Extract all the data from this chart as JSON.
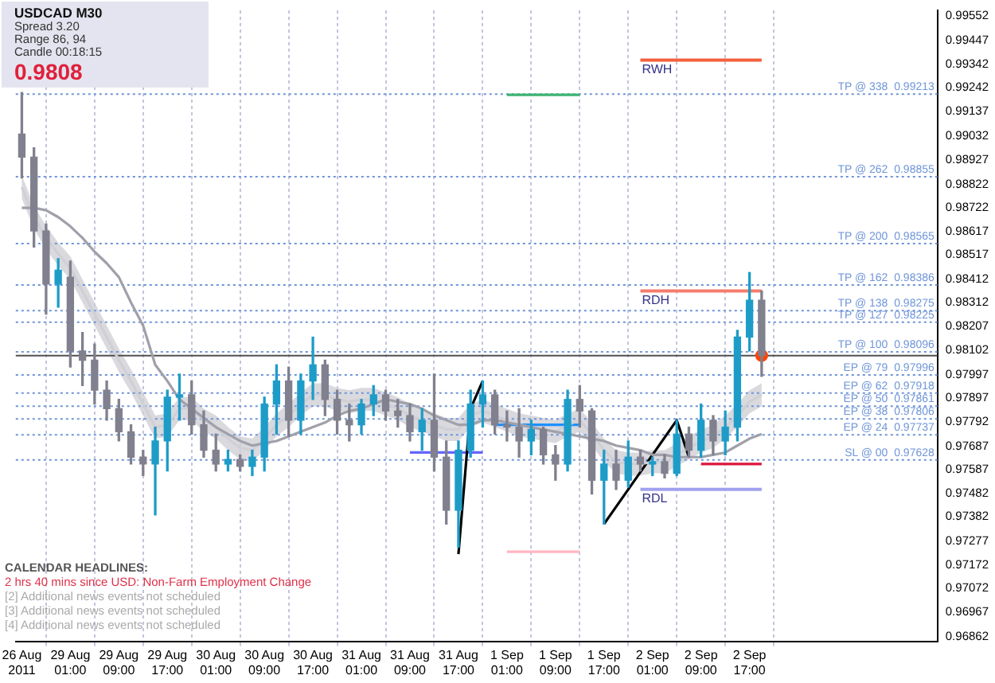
{
  "chart_data": {
    "type": "candlestick",
    "title": "USDCAD  M30",
    "categories": [
      "26 Aug 2011",
      null,
      null,
      null,
      "29 Aug 01:00",
      null,
      null,
      null,
      "29 Aug 09:00",
      null,
      null,
      null,
      "29 Aug 17:00",
      null,
      null,
      null,
      "30 Aug 01:00",
      null,
      null,
      null,
      "30 Aug 09:00",
      null,
      null,
      null,
      "30 Aug 17:00",
      null,
      null,
      null,
      "31 Aug 01:00",
      null,
      null,
      null,
      "31 Aug 09:00",
      null,
      null,
      null,
      "31 Aug 17:00",
      null,
      null,
      null,
      "1 Sep 01:00",
      null,
      null,
      null,
      "1 Sep 09:00",
      null,
      null,
      null,
      "1 Sep 17:00",
      null,
      null,
      null,
      "2 Sep 01:00",
      null,
      null,
      null,
      "2 Sep 09:00",
      null,
      null,
      null,
      "2 Sep 17:00",
      null
    ],
    "ohlc": [
      [
        0.9904,
        0.9922,
        0.9885,
        0.9894
      ],
      [
        0.9894,
        0.9898,
        0.9855,
        0.9862
      ],
      [
        0.9862,
        0.9865,
        0.9826,
        0.9839
      ],
      [
        0.9839,
        0.985,
        0.9829,
        0.9845
      ],
      [
        0.9842,
        0.9849,
        0.9803,
        0.981
      ],
      [
        0.981,
        0.9818,
        0.9795,
        0.9806
      ],
      [
        0.9806,
        0.9813,
        0.9787,
        0.9793
      ],
      [
        0.9793,
        0.9797,
        0.978,
        0.9785
      ],
      [
        0.9785,
        0.9789,
        0.9771,
        0.9775
      ],
      [
        0.9775,
        0.9778,
        0.9761,
        0.9764
      ],
      [
        0.9764,
        0.9767,
        0.9756,
        0.9761
      ],
      [
        0.9761,
        0.9777,
        0.9739,
        0.9771
      ],
      [
        0.9771,
        0.9793,
        0.9758,
        0.979
      ],
      [
        0.979,
        0.98,
        0.978,
        0.9791
      ],
      [
        0.9791,
        0.9797,
        0.9774,
        0.9778
      ],
      [
        0.9778,
        0.9784,
        0.9764,
        0.9767
      ],
      [
        0.9767,
        0.9774,
        0.9758,
        0.9761
      ],
      [
        0.9761,
        0.9767,
        0.9758,
        0.9763
      ],
      [
        0.9763,
        0.9765,
        0.9758,
        0.976
      ],
      [
        0.976,
        0.9767,
        0.9756,
        0.9764
      ],
      [
        0.9764,
        0.979,
        0.9758,
        0.9787
      ],
      [
        0.9787,
        0.9804,
        0.9774,
        0.9797
      ],
      [
        0.9797,
        0.9803,
        0.9773,
        0.978
      ],
      [
        0.978,
        0.98,
        0.9774,
        0.9797
      ],
      [
        0.9797,
        0.9816,
        0.9789,
        0.9804
      ],
      [
        0.9804,
        0.9806,
        0.9782,
        0.9789
      ],
      [
        0.9789,
        0.9793,
        0.9774,
        0.978
      ],
      [
        0.978,
        0.9787,
        0.9771,
        0.9778
      ],
      [
        0.9778,
        0.9789,
        0.9774,
        0.9787
      ],
      [
        0.9787,
        0.9795,
        0.9782,
        0.9791
      ],
      [
        0.9791,
        0.9793,
        0.978,
        0.9784
      ],
      [
        0.9784,
        0.9789,
        0.9777,
        0.9782
      ],
      [
        0.9782,
        0.9787,
        0.9771,
        0.9775
      ],
      [
        0.9775,
        0.9785,
        0.9767,
        0.978
      ],
      [
        0.978,
        0.98,
        0.9758,
        0.9764
      ],
      [
        0.9764,
        0.9771,
        0.9735,
        0.9741
      ],
      [
        0.9741,
        0.9771,
        0.9725,
        0.9767
      ],
      [
        0.9767,
        0.9793,
        0.9764,
        0.9787
      ],
      [
        0.9787,
        0.9797,
        0.9777,
        0.9791
      ],
      [
        0.9791,
        0.9793,
        0.9774,
        0.9778
      ],
      [
        0.9778,
        0.9784,
        0.9771,
        0.9777
      ],
      [
        0.9777,
        0.9785,
        0.9764,
        0.9771
      ],
      [
        0.9771,
        0.978,
        0.9765,
        0.9776
      ],
      [
        0.9776,
        0.9777,
        0.9761,
        0.9765
      ],
      [
        0.9765,
        0.9769,
        0.9754,
        0.9761
      ],
      [
        0.9761,
        0.9793,
        0.9758,
        0.9789
      ],
      [
        0.9789,
        0.9795,
        0.9777,
        0.9784
      ],
      [
        0.9784,
        0.9785,
        0.9748,
        0.9754
      ],
      [
        0.9754,
        0.9767,
        0.9735,
        0.9761
      ],
      [
        0.9761,
        0.9767,
        0.975,
        0.9754
      ],
      [
        0.9754,
        0.9771,
        0.9751,
        0.9764
      ],
      [
        0.9764,
        0.9767,
        0.9758,
        0.9761
      ],
      [
        0.9761,
        0.9764,
        0.9756,
        0.9762
      ],
      [
        0.9762,
        0.9765,
        0.9755,
        0.9757
      ],
      [
        0.9757,
        0.978,
        0.9756,
        0.9774
      ],
      [
        0.9774,
        0.9777,
        0.9764,
        0.9767
      ],
      [
        0.9767,
        0.9787,
        0.9764,
        0.978
      ],
      [
        0.978,
        0.9782,
        0.9765,
        0.9771
      ],
      [
        0.9771,
        0.9784,
        0.9765,
        0.9777
      ],
      [
        0.9777,
        0.9819,
        0.9771,
        0.9816
      ],
      [
        0.9816,
        0.9844,
        0.981,
        0.9832
      ],
      [
        0.9832,
        0.9836,
        0.9799,
        0.9808
      ]
    ],
    "series": [
      {
        "type": "line",
        "color": "#a0a0aa",
        "values": [
          0.9872,
          0.9872,
          0.9871,
          0.9868,
          0.9864,
          0.9859,
          0.9853,
          0.9848,
          0.9842,
          0.9831,
          0.9821,
          0.9804,
          0.9797,
          0.9789,
          0.9785,
          0.9781,
          0.9777,
          0.9774,
          0.9771,
          0.9769,
          0.977,
          0.9771,
          0.9773,
          0.9775,
          0.9777,
          0.9779,
          0.9782,
          0.9784,
          0.9785,
          0.9787,
          0.9789,
          0.9788,
          0.9787,
          0.9785,
          0.9782,
          0.978,
          0.9778,
          0.9778,
          0.978,
          0.978,
          0.9779,
          0.9778,
          0.9777,
          0.9776,
          0.9775,
          0.9774,
          0.9773,
          0.9772,
          0.9771,
          0.9769,
          0.9768,
          0.9767,
          0.9765,
          0.9765,
          0.9764,
          0.9764,
          0.9764,
          0.9765,
          0.9766,
          0.9769,
          0.9772,
          0.9774
        ]
      },
      {
        "type": "line",
        "color": "#cfcfd6",
        "values": [
          0.9881,
          0.9868,
          0.9859,
          0.9852,
          0.9846,
          0.9836,
          0.9826,
          0.9816,
          0.9806,
          0.9797,
          0.9787,
          0.9777,
          0.9778,
          0.9785,
          0.9785,
          0.978,
          0.9777,
          0.9772,
          0.9768,
          0.9767,
          0.9772,
          0.9778,
          0.9782,
          0.9787,
          0.9791,
          0.9791,
          0.9789,
          0.9788,
          0.9789,
          0.9789,
          0.9787,
          0.9785,
          0.9782,
          0.978,
          0.9778,
          0.9776,
          0.9776,
          0.9782,
          0.9784,
          0.9782,
          0.978,
          0.9778,
          0.9777,
          0.9776,
          0.9775,
          0.9778,
          0.978,
          0.9774,
          0.9767,
          0.9762,
          0.9761,
          0.9761,
          0.9762,
          0.9762,
          0.9765,
          0.9768,
          0.9771,
          0.9773,
          0.9777,
          0.9782,
          0.9788,
          0.9791
        ],
        "upper": [
          0.9886,
          0.9873,
          0.9864,
          0.9857,
          0.9851,
          0.9841,
          0.9831,
          0.9821,
          0.9811,
          0.9802,
          0.9792,
          0.9782,
          0.9783,
          0.979,
          0.979,
          0.9785,
          0.9782,
          0.9777,
          0.9773,
          0.9772,
          0.9777,
          0.9783,
          0.9787,
          0.9792,
          0.9796,
          0.9796,
          0.9794,
          0.9793,
          0.9794,
          0.9794,
          0.9792,
          0.979,
          0.9787,
          0.9785,
          0.9783,
          0.9781,
          0.9781,
          0.9787,
          0.9789,
          0.9787,
          0.9785,
          0.9783,
          0.9782,
          0.9781,
          0.978,
          0.9783,
          0.9785,
          0.9779,
          0.9772,
          0.9767,
          0.9766,
          0.9766,
          0.9767,
          0.9767,
          0.977,
          0.9773,
          0.9776,
          0.9778,
          0.9782,
          0.9787,
          0.9793,
          0.9796
        ],
        "lower": [
          0.9876,
          0.9863,
          0.9854,
          0.9847,
          0.9841,
          0.9831,
          0.9821,
          0.9811,
          0.9801,
          0.9792,
          0.9782,
          0.9772,
          0.9773,
          0.978,
          0.978,
          0.9775,
          0.9772,
          0.9767,
          0.9763,
          0.9762,
          0.9767,
          0.9773,
          0.9777,
          0.9782,
          0.9786,
          0.9786,
          0.9784,
          0.9783,
          0.9784,
          0.9784,
          0.9782,
          0.978,
          0.9777,
          0.9775,
          0.9773,
          0.9771,
          0.9771,
          0.9777,
          0.9779,
          0.9777,
          0.9775,
          0.9773,
          0.9772,
          0.9771,
          0.977,
          0.9773,
          0.9775,
          0.9769,
          0.9762,
          0.9757,
          0.9756,
          0.9756,
          0.9757,
          0.9757,
          0.976,
          0.9763,
          0.9766,
          0.9768,
          0.9772,
          0.9777,
          0.9783,
          0.9786
        ]
      },
      {
        "type": "line",
        "color": "#000000",
        "values": [
          null,
          null,
          null,
          null,
          null,
          null,
          null,
          null,
          null,
          null,
          null,
          null,
          null,
          null,
          null,
          null,
          null,
          null,
          null,
          null,
          null,
          null,
          null,
          null,
          null,
          null,
          null,
          null,
          null,
          null,
          null,
          null,
          null,
          null,
          null,
          null,
          0.9722,
          0.9785,
          0.9797,
          null,
          null,
          null,
          null,
          null,
          null,
          null,
          null,
          null,
          null,
          null,
          null,
          null,
          null,
          null,
          null,
          null,
          null,
          null,
          null,
          null,
          null,
          null
        ]
      },
      {
        "type": "line",
        "color": "#000000",
        "values": [
          null,
          null,
          null,
          null,
          null,
          null,
          null,
          null,
          null,
          null,
          null,
          null,
          null,
          null,
          null,
          null,
          null,
          null,
          null,
          null,
          null,
          null,
          null,
          null,
          null,
          null,
          null,
          null,
          null,
          null,
          null,
          null,
          null,
          null,
          null,
          null,
          null,
          null,
          null,
          null,
          null,
          null,
          null,
          null,
          null,
          null,
          null,
          null,
          0.9735,
          null,
          null,
          null,
          null,
          null,
          0.978,
          0.9764,
          null,
          null,
          null,
          null,
          null,
          null
        ]
      },
      {
        "type": "line",
        "color": "#3cb371",
        "values": [
          null,
          null,
          null,
          null,
          null,
          null,
          null,
          null,
          null,
          null,
          null,
          null,
          null,
          null,
          null,
          null,
          null,
          null,
          null,
          null,
          null,
          null,
          null,
          null,
          null,
          null,
          null,
          null,
          null,
          null,
          null,
          null,
          null,
          null,
          null,
          null,
          null,
          null,
          null,
          null,
          0.9921,
          0.9921,
          0.9921,
          0.9921,
          0.9921,
          0.9921,
          0.9921,
          null,
          null,
          null,
          null,
          null,
          null,
          null,
          null,
          null,
          null,
          null,
          null,
          null,
          null,
          null
        ]
      },
      {
        "type": "line",
        "color": "#ffb6c1",
        "values": [
          null,
          null,
          null,
          null,
          null,
          null,
          null,
          null,
          null,
          null,
          null,
          null,
          null,
          null,
          null,
          null,
          null,
          null,
          null,
          null,
          null,
          null,
          null,
          null,
          null,
          null,
          null,
          null,
          null,
          null,
          null,
          null,
          null,
          null,
          null,
          null,
          null,
          null,
          null,
          null,
          0.9723,
          0.9723,
          0.9723,
          0.9723,
          0.9723,
          0.9723,
          0.9723,
          null,
          null,
          null,
          null,
          null,
          null,
          null,
          null,
          null,
          null,
          null,
          null,
          null,
          null,
          null
        ]
      },
      {
        "type": "line",
        "color": "#6464ff",
        "values": [
          null,
          null,
          null,
          null,
          null,
          null,
          null,
          null,
          null,
          null,
          null,
          null,
          null,
          null,
          null,
          null,
          null,
          null,
          null,
          null,
          null,
          null,
          null,
          null,
          null,
          null,
          null,
          null,
          null,
          null,
          null,
          null,
          0.9766,
          0.9766,
          0.9766,
          0.9766,
          0.9766,
          0.9766,
          0.9766,
          null,
          null,
          null,
          null,
          null,
          null,
          null,
          null,
          null,
          null,
          null,
          null,
          null,
          null,
          null,
          null,
          null,
          null,
          null,
          null,
          null,
          null,
          null
        ]
      },
      {
        "type": "line",
        "color": "#1e90ff",
        "values": [
          null,
          null,
          null,
          null,
          null,
          null,
          null,
          null,
          null,
          null,
          null,
          null,
          null,
          null,
          null,
          null,
          null,
          null,
          null,
          null,
          null,
          null,
          null,
          null,
          null,
          null,
          null,
          null,
          null,
          null,
          null,
          null,
          null,
          null,
          null,
          null,
          null,
          null,
          null,
          0.9778,
          0.9778,
          0.9778,
          0.9778,
          0.9778,
          0.9778,
          0.9778,
          0.9778,
          null,
          null,
          null,
          null,
          null,
          null,
          null,
          null,
          null,
          null,
          null,
          null,
          null,
          null,
          null
        ]
      },
      {
        "type": "line",
        "color": "#dc143c",
        "values": [
          null,
          null,
          null,
          null,
          null,
          null,
          null,
          null,
          null,
          null,
          null,
          null,
          null,
          null,
          null,
          null,
          null,
          null,
          null,
          null,
          null,
          null,
          null,
          null,
          null,
          null,
          null,
          null,
          null,
          null,
          null,
          null,
          null,
          null,
          null,
          null,
          null,
          null,
          null,
          null,
          null,
          null,
          null,
          null,
          null,
          null,
          null,
          null,
          null,
          null,
          null,
          null,
          null,
          null,
          null,
          null,
          0.9761,
          0.9761,
          0.9761,
          0.9761,
          0.9761,
          0.9761
        ]
      },
      {
        "type": "line",
        "name": "RWH",
        "color": "#f4603c",
        "values": [
          null,
          null,
          null,
          null,
          null,
          null,
          null,
          null,
          null,
          null,
          null,
          null,
          null,
          null,
          null,
          null,
          null,
          null,
          null,
          null,
          null,
          null,
          null,
          null,
          null,
          null,
          null,
          null,
          null,
          null,
          null,
          null,
          null,
          null,
          null,
          null,
          null,
          null,
          null,
          null,
          null,
          null,
          null,
          null,
          null,
          null,
          null,
          null,
          null,
          null,
          null,
          0.9936,
          0.9936,
          0.9936,
          0.9936,
          0.9936,
          0.9936,
          0.9936,
          0.9936,
          0.9936,
          0.9936,
          0.9936
        ]
      },
      {
        "type": "line",
        "name": "RDH",
        "color": "#f47c6c",
        "values": [
          null,
          null,
          null,
          null,
          null,
          null,
          null,
          null,
          null,
          null,
          null,
          null,
          null,
          null,
          null,
          null,
          null,
          null,
          null,
          null,
          null,
          null,
          null,
          null,
          null,
          null,
          null,
          null,
          null,
          null,
          null,
          null,
          null,
          null,
          null,
          null,
          null,
          null,
          null,
          null,
          null,
          null,
          null,
          null,
          null,
          null,
          null,
          null,
          null,
          null,
          null,
          0.9836,
          0.9836,
          0.9836,
          0.9836,
          0.9836,
          0.9836,
          0.9836,
          0.9836,
          0.9836,
          0.9836,
          0.9836
        ]
      },
      {
        "type": "line",
        "name": "RDL",
        "color": "#a0a0f0",
        "values": [
          null,
          null,
          null,
          null,
          null,
          null,
          null,
          null,
          null,
          null,
          null,
          null,
          null,
          null,
          null,
          null,
          null,
          null,
          null,
          null,
          null,
          null,
          null,
          null,
          null,
          null,
          null,
          null,
          null,
          null,
          null,
          null,
          null,
          null,
          null,
          null,
          null,
          null,
          null,
          null,
          null,
          null,
          null,
          null,
          null,
          null,
          null,
          null,
          null,
          null,
          null,
          0.975,
          0.975,
          0.975,
          0.975,
          0.975,
          0.975,
          0.975,
          0.975,
          0.975,
          0.975,
          0.975
        ]
      },
      {
        "type": "scatter",
        "color": "#ff4500",
        "marker": "circle",
        "values": [
          null,
          null,
          null,
          null,
          null,
          null,
          null,
          null,
          null,
          null,
          null,
          null,
          null,
          null,
          null,
          null,
          null,
          null,
          null,
          null,
          null,
          null,
          null,
          null,
          null,
          null,
          null,
          null,
          null,
          null,
          null,
          null,
          null,
          null,
          null,
          null,
          null,
          null,
          null,
          null,
          null,
          null,
          null,
          null,
          null,
          null,
          null,
          null,
          null,
          null,
          null,
          null,
          null,
          null,
          null,
          null,
          null,
          null,
          null,
          null,
          null,
          0.9808
        ]
      }
    ],
    "ylim": [
      0.96842,
      0.99576
    ],
    "yticks": [
      0.96862,
      0.96967,
      0.97072,
      0.97172,
      0.97277,
      0.97382,
      0.97482,
      0.97587,
      0.97687,
      0.97792,
      0.97897,
      0.97997,
      0.98102,
      0.98207,
      0.98312,
      0.98412,
      0.98517,
      0.98617,
      0.98722,
      0.98822,
      0.98927,
      0.99032,
      0.99137,
      0.99242,
      0.99342,
      0.99447,
      0.99552
    ],
    "grid": "x",
    "ref_lines": [
      {
        "axis": "y",
        "value": 0.9808,
        "color": "#505050",
        "line_style": "solid"
      },
      {
        "axis": "y",
        "value": 0.99213,
        "label": "TP @ 338  0.99213",
        "color": "#6f95d8",
        "line_style": "dotted"
      },
      {
        "axis": "y",
        "value": 0.98855,
        "label": "TP @ 262  0.98855",
        "color": "#6f95d8",
        "line_style": "dotted"
      },
      {
        "axis": "y",
        "value": 0.98565,
        "label": "TP @ 200  0.98565",
        "color": "#6f95d8",
        "line_style": "dotted"
      },
      {
        "axis": "y",
        "value": 0.98386,
        "label": "TP @ 162  0.98386",
        "color": "#6f95d8",
        "line_style": "dotted"
      },
      {
        "axis": "y",
        "value": 0.98275,
        "label": "TP @ 138  0.98275",
        "color": "#6f95d8",
        "line_style": "dotted"
      },
      {
        "axis": "y",
        "value": 0.98225,
        "label": "TP @ 127  0.98225",
        "color": "#6f95d8",
        "line_style": "dotted"
      },
      {
        "axis": "y",
        "value": 0.98096,
        "label": "TP @ 100  0.98096",
        "color": "#6f95d8",
        "line_style": "dotted"
      },
      {
        "axis": "y",
        "value": 0.97996,
        "label": "EP @ 79  0.97996",
        "color": "#6f95d8",
        "line_style": "dotted"
      },
      {
        "axis": "y",
        "value": 0.97918,
        "label": "EP @ 62  0.97918",
        "color": "#6f95d8",
        "line_style": "dotted"
      },
      {
        "axis": "y",
        "value": 0.97861,
        "label": "EP @ 50  0.97861",
        "color": "#6f95d8",
        "line_style": "dotted"
      },
      {
        "axis": "y",
        "value": 0.97806,
        "label": "EP @ 38  0.97806",
        "color": "#6f95d8",
        "line_style": "dotted"
      },
      {
        "axis": "y",
        "value": 0.97737,
        "label": "EP @ 24  0.97737",
        "color": "#6f95d8",
        "line_style": "dotted"
      },
      {
        "axis": "y",
        "value": 0.97628,
        "label": "SL @ 00  0.97628",
        "color": "#6f95d8",
        "line_style": "dotted"
      }
    ],
    "annotations": [
      "Spread  3.20",
      "Range  86, 94",
      "Candle  00:18:15",
      "0.9808",
      "CALENDAR HEADLINES:",
      "2 hrs 40 mins since USD: Non-Farm Employment Change",
      "[2]  Additional news events not scheduled",
      "[3]  Additional news events not scheduled",
      "[4]  Additional news events not scheduled"
    ]
  }
}
